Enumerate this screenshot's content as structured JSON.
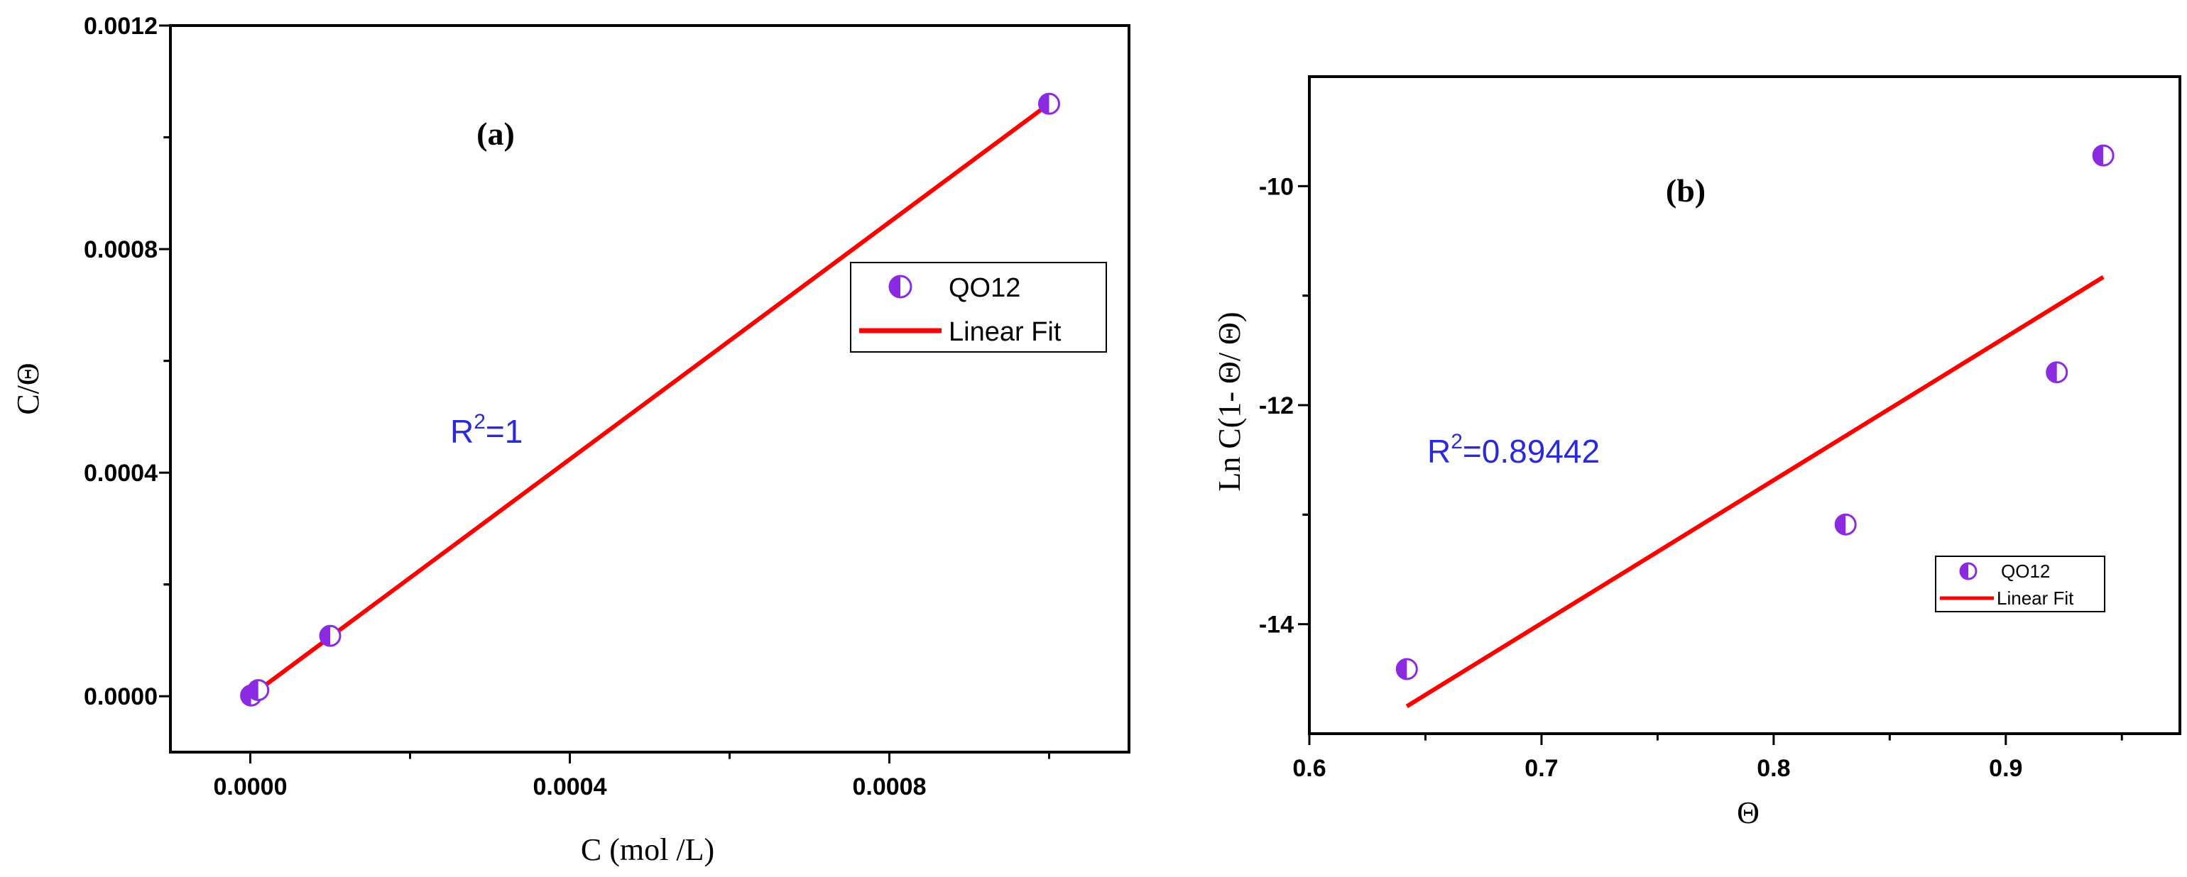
{
  "colors": {
    "marker": "#8a2be2",
    "fit": "#ff0000",
    "annotation": "#2a2ad8",
    "axis": "#000000"
  },
  "chart_data": [
    {
      "type": "scatter",
      "panel_label": "(a)",
      "xlabel": "C (mol /L)",
      "ylabel": "C/Θ",
      "xlim": [
        -0.0001,
        0.0011
      ],
      "ylim": [
        -0.0001,
        0.0012
      ],
      "xticks": [
        0.0,
        0.0004,
        0.0008
      ],
      "xtick_labels": [
        "0.0000",
        "0.0004",
        "0.0008"
      ],
      "yticks": [
        0.0,
        0.0004,
        0.0008,
        0.0012
      ],
      "ytick_labels": [
        "0.0000",
        "0.0004",
        "0.0008",
        "0.0012"
      ],
      "series": [
        {
          "name": "QO12",
          "kind": "points",
          "x": [
            1e-06,
            1e-05,
            0.0001,
            0.001
          ],
          "y": [
            1.2e-06,
            1.1e-05,
            0.000108,
            0.00106
          ]
        },
        {
          "name": "Linear Fit",
          "kind": "line",
          "x": [
            0.0,
            0.001
          ],
          "y": [
            0.0,
            0.00106
          ]
        }
      ],
      "legend": [
        "QO12",
        "Linear Fit"
      ],
      "legend_position": "right-middle",
      "annotation": {
        "prefix": "R",
        "sup": "2",
        "suffix": "=1"
      }
    },
    {
      "type": "scatter",
      "panel_label": "(b)",
      "xlabel": "Θ",
      "ylabel": "Ln C(1- Θ/ Θ)",
      "xlim": [
        0.6,
        0.975
      ],
      "ylim": [
        -15.0,
        -9.0
      ],
      "xticks": [
        0.6,
        0.7,
        0.8,
        0.9
      ],
      "xtick_labels": [
        "0.6",
        "0.7",
        "0.8",
        "0.9"
      ],
      "yticks": [
        -14,
        -12,
        -10
      ],
      "ytick_labels": [
        "-14",
        "-12",
        "-10"
      ],
      "series": [
        {
          "name": "QO12",
          "kind": "points",
          "x": [
            0.642,
            0.831,
            0.922,
            0.942
          ],
          "y": [
            -14.41,
            -13.09,
            -11.7,
            -9.72
          ]
        },
        {
          "name": "Linear Fit",
          "kind": "line",
          "x": [
            0.642,
            0.942
          ],
          "y": [
            -14.75,
            -10.83
          ]
        }
      ],
      "legend": [
        "QO12",
        "Linear Fit"
      ],
      "legend_position": "bottom-right",
      "annotation": {
        "prefix": "R",
        "sup": "2",
        "suffix": "=0.89442"
      }
    }
  ]
}
